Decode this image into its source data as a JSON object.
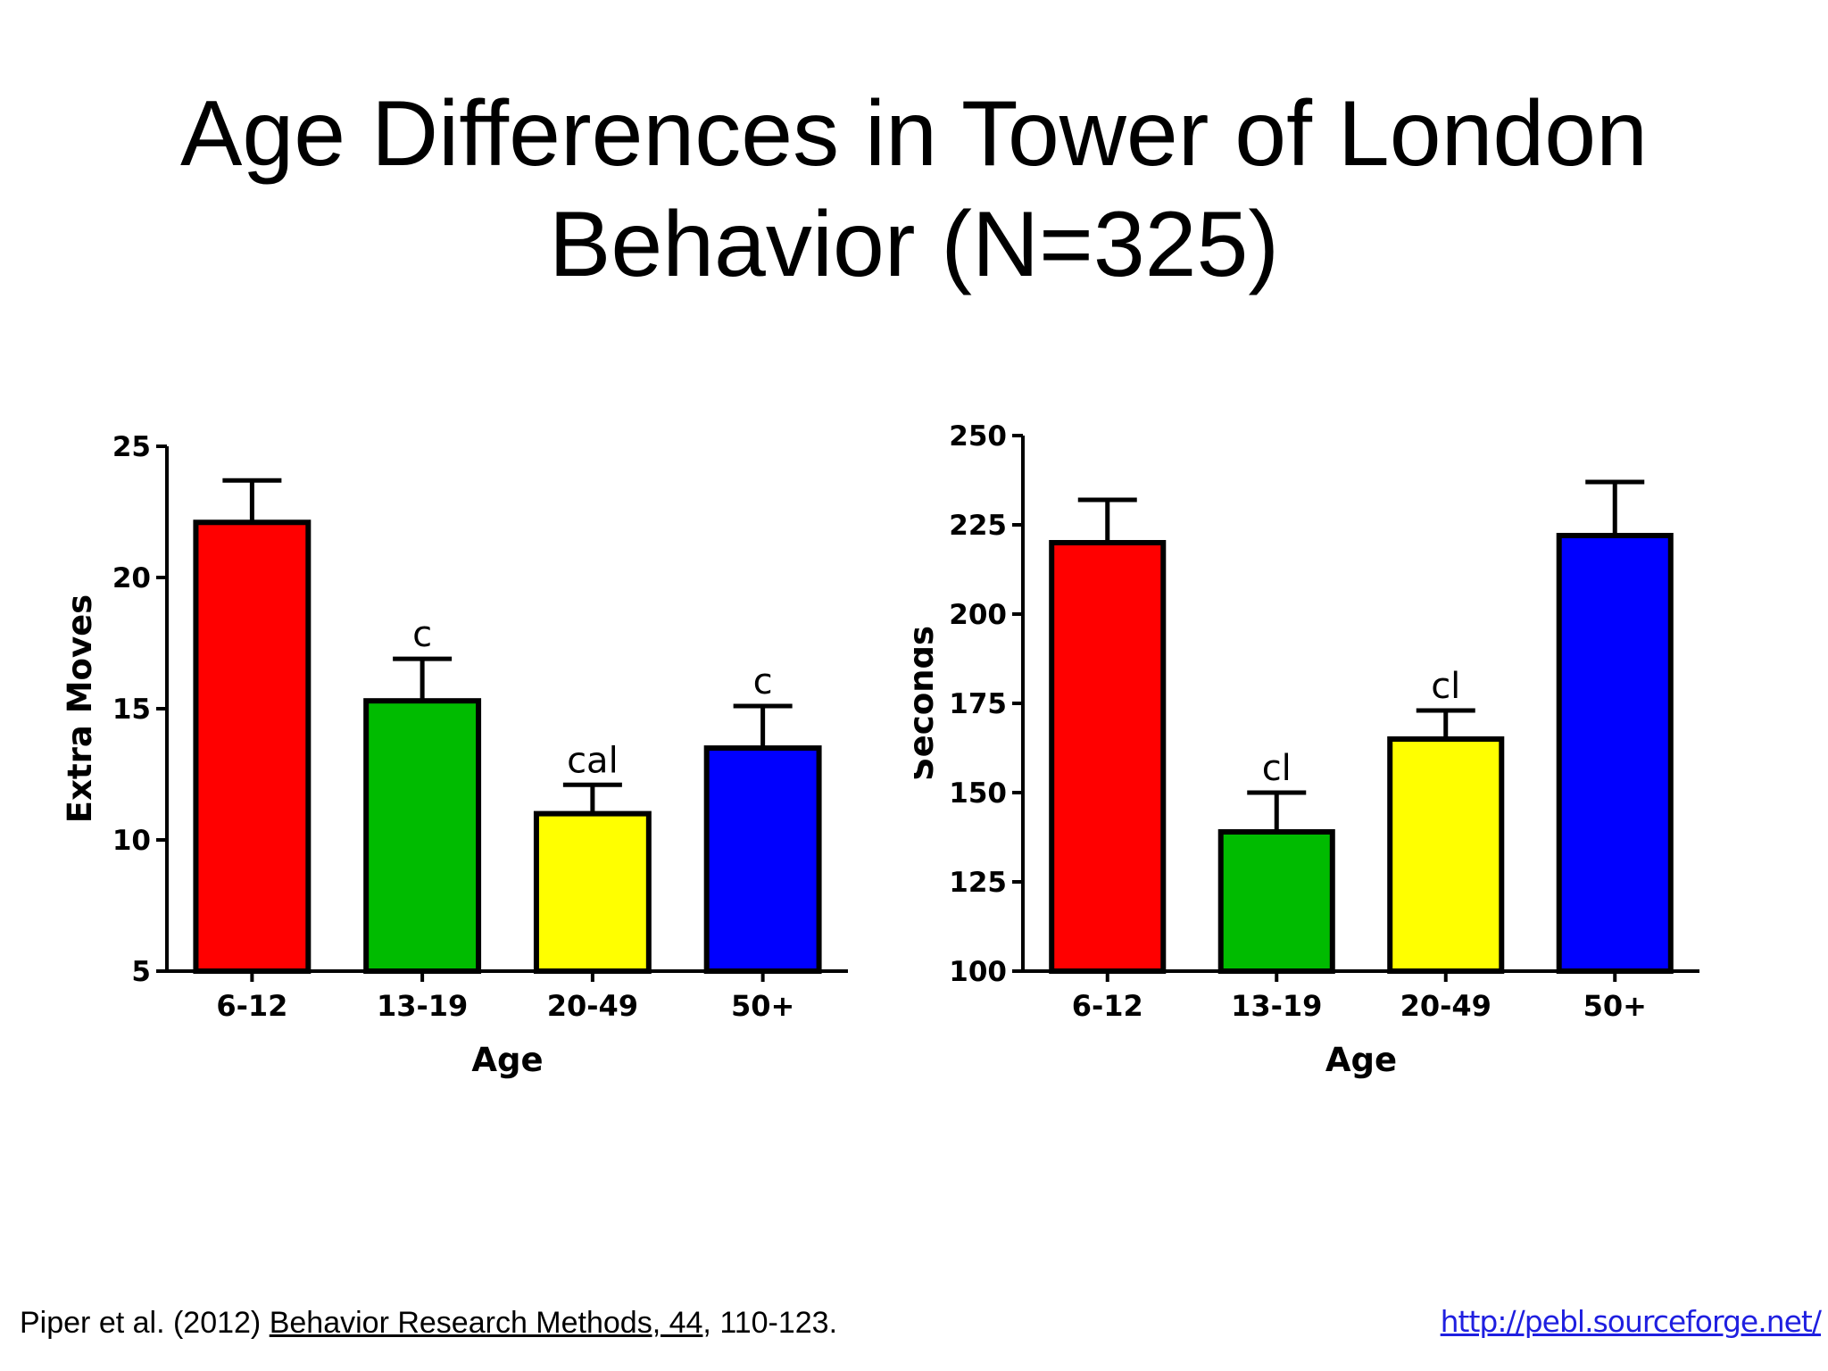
{
  "slide": {
    "title_line1": "Age Differences in Tower of London",
    "title_line2": "Behavior (N=325)"
  },
  "footer": {
    "citation_prefix": "Piper et al. (2012) ",
    "citation_journal": "Behavior Research Methods, 44",
    "citation_suffix": ", 110-123.",
    "link": "http://pebl.sourceforge.net/"
  },
  "chart_data": [
    {
      "type": "bar",
      "categories": [
        "6-12",
        "13-19",
        "20-49",
        "50+"
      ],
      "values": [
        22.1,
        15.3,
        11.0,
        13.5
      ],
      "error_upper": [
        23.7,
        16.9,
        12.1,
        15.1
      ],
      "annotations": [
        "",
        "c",
        "cal",
        "c"
      ],
      "colors": [
        "#ff0000",
        "#00bb00",
        "#ffff00",
        "#0000ff"
      ],
      "xlabel": "Age",
      "ylabel": "Extra Moves",
      "ylim": [
        5,
        25
      ],
      "yticks": [
        5,
        10,
        15,
        20,
        25
      ],
      "grid": false
    },
    {
      "type": "bar",
      "categories": [
        "6-12",
        "13-19",
        "20-49",
        "50+"
      ],
      "values": [
        220,
        139,
        165,
        222
      ],
      "error_upper": [
        232,
        150,
        173,
        237
      ],
      "annotations": [
        "",
        "cl",
        "cl",
        ""
      ],
      "colors": [
        "#ff0000",
        "#00bb00",
        "#ffff00",
        "#0000ff"
      ],
      "xlabel": "Age",
      "ylabel": "Seconds",
      "ylim": [
        100,
        250
      ],
      "yticks": [
        100,
        125,
        150,
        175,
        200,
        225,
        250
      ],
      "grid": false
    }
  ]
}
